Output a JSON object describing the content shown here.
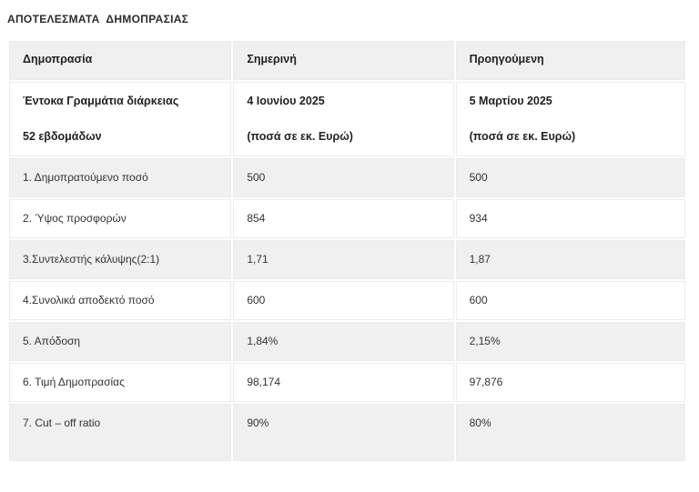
{
  "page": {
    "title": "ΑΠΟΤΕΛΕΣΜΑΤΑ  ΔΗΜΟΠΡΑΣΙΑΣ"
  },
  "table": {
    "columns": {
      "auction": "Δημοπρασία",
      "current": "Σημερινή",
      "previous": "Προηγούμενη"
    },
    "subheader": {
      "instrument_line1": "Έντοκα Γραμμάτια διάρκειας",
      "instrument_line2": "52 εβδομάδων",
      "current_line1": "4 Ιουνίου 2025",
      "current_line2": "(ποσά σε εκ. Ευρώ)",
      "previous_line1": "5 Μαρτίου 2025",
      "previous_line2": "(ποσά σε εκ. Ευρώ)"
    },
    "rows": [
      {
        "label": "1. Δημοπρατούμενο ποσό",
        "current": "500",
        "previous": "500"
      },
      {
        "label": "2. Ύψος προσφορών",
        "current": "854",
        "previous": "934"
      },
      {
        "label": "3.Συντελεστής κάλυψης(2:1)",
        "current": "1,71",
        "previous": "1,87"
      },
      {
        "label": "4.Συνολικά αποδεκτό ποσό",
        "current": "600",
        "previous": "600"
      },
      {
        "label": "5. Απόδοση",
        "current": "1,84%",
        "previous": "2,15%"
      },
      {
        "label": "6. Τιμή Δημοπρασίας",
        "current": "98,174",
        "previous": "97,876"
      },
      {
        "label": "7. Cut – off ratio",
        "current": "90%",
        "previous": "80%"
      }
    ]
  },
  "colors": {
    "row_shade": "#f0f0f0",
    "row_white": "#ffffff",
    "cell_border": "#ececec",
    "text": "#333333",
    "heading_text": "#222222",
    "background": "#ffffff"
  }
}
